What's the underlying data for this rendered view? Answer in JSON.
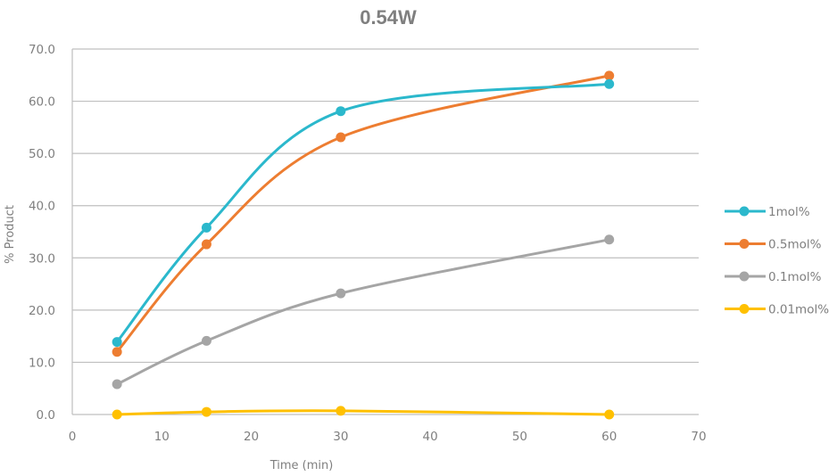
{
  "chart_data": {
    "type": "line",
    "title": "0.54W",
    "xlabel": "Time (min)",
    "ylabel": "% Product",
    "xlim": [
      0,
      70
    ],
    "ylim": [
      0,
      70
    ],
    "x_ticks": [
      "0",
      "10",
      "20",
      "30",
      "40",
      "50",
      "60",
      "70"
    ],
    "y_ticks": [
      "0.0",
      "10.0",
      "20.0",
      "30.0",
      "40.0",
      "50.0",
      "60.0",
      "70.0"
    ],
    "grid": "horizontal",
    "legend_position": "right",
    "smoothed": true,
    "x": [
      5,
      15,
      30,
      60
    ],
    "series": [
      {
        "name": "1mol%",
        "color": "#2bb8cc",
        "values": [
          13.9,
          35.8,
          58.1,
          63.3
        ]
      },
      {
        "name": "0.5mol%",
        "color": "#ed7d31",
        "values": [
          12.0,
          32.6,
          53.1,
          64.9
        ]
      },
      {
        "name": "0.1mol%",
        "color": "#a5a5a5",
        "values": [
          5.8,
          14.1,
          23.2,
          33.5
        ]
      },
      {
        "name": "0.01mol%",
        "color": "#ffc000",
        "values": [
          0.0,
          0.5,
          0.7,
          0.0
        ]
      }
    ]
  }
}
